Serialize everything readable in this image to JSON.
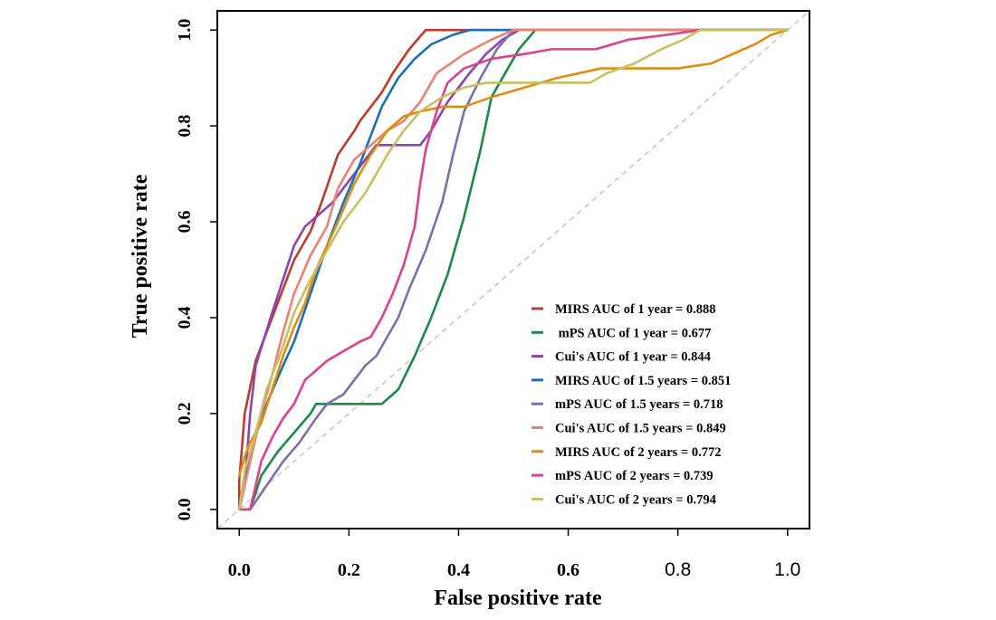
{
  "chart_data": {
    "type": "line",
    "xlabel": "False positive rate",
    "ylabel": "True positive rate",
    "xlim": [
      -0.04,
      1.04
    ],
    "ylim": [
      -0.04,
      1.04
    ],
    "x_ticks": [
      {
        "value": 0.0,
        "label": "0.0",
        "style": "serif-bold"
      },
      {
        "value": 0.2,
        "label": "0.2",
        "style": "serif-bold"
      },
      {
        "value": 0.4,
        "label": "0.4",
        "style": "serif-bold"
      },
      {
        "value": 0.6,
        "label": "0.6",
        "style": "serif-bold"
      },
      {
        "value": 0.8,
        "label": "0.8",
        "style": "sans"
      },
      {
        "value": 1.0,
        "label": "1.0",
        "style": "sans"
      }
    ],
    "y_ticks": [
      {
        "value": 0.0,
        "label": "0.0"
      },
      {
        "value": 0.2,
        "label": "0.2"
      },
      {
        "value": 0.4,
        "label": "0.4"
      },
      {
        "value": 0.6,
        "label": "0.6"
      },
      {
        "value": 0.8,
        "label": "0.8"
      },
      {
        "value": 1.0,
        "label": "1.0"
      }
    ],
    "grid": false,
    "legend_position": "bottom-right",
    "reference_line": {
      "style": "dashed",
      "color": "#c8c8c8",
      "points": [
        [
          -0.04,
          -0.04
        ],
        [
          1.04,
          1.04
        ]
      ]
    },
    "series": [
      {
        "name": "MIRS AUC of 1 year = 0.888",
        "color": "#c0392b",
        "points": [
          [
            0,
            0
          ],
          [
            0,
            0.06
          ],
          [
            0.01,
            0.2
          ],
          [
            0.03,
            0.31
          ],
          [
            0.05,
            0.37
          ],
          [
            0.08,
            0.46
          ],
          [
            0.1,
            0.52
          ],
          [
            0.13,
            0.58
          ],
          [
            0.15,
            0.64
          ],
          [
            0.18,
            0.74
          ],
          [
            0.21,
            0.79
          ],
          [
            0.22,
            0.81
          ],
          [
            0.26,
            0.87
          ],
          [
            0.28,
            0.91
          ],
          [
            0.31,
            0.96
          ],
          [
            0.34,
            1.0
          ],
          [
            1.0,
            1.0
          ]
        ]
      },
      {
        "name": " mPS AUC of 1 year = 0.677",
        "color": "#1a8a4a",
        "points": [
          [
            0,
            0
          ],
          [
            0.02,
            0
          ],
          [
            0.04,
            0.07
          ],
          [
            0.07,
            0.12
          ],
          [
            0.1,
            0.16
          ],
          [
            0.13,
            0.2
          ],
          [
            0.14,
            0.22
          ],
          [
            0.19,
            0.22
          ],
          [
            0.26,
            0.22
          ],
          [
            0.29,
            0.25
          ],
          [
            0.32,
            0.32
          ],
          [
            0.35,
            0.4
          ],
          [
            0.38,
            0.49
          ],
          [
            0.41,
            0.61
          ],
          [
            0.44,
            0.75
          ],
          [
            0.46,
            0.86
          ],
          [
            0.49,
            0.92
          ],
          [
            0.51,
            0.96
          ],
          [
            0.54,
            1.0
          ],
          [
            1.0,
            1.0
          ]
        ]
      },
      {
        "name": "Cui's AUC of 1 year = 0.844",
        "color": "#8e44ad",
        "points": [
          [
            0,
            0
          ],
          [
            0.01,
            0.05
          ],
          [
            0.02,
            0.2
          ],
          [
            0.03,
            0.3
          ],
          [
            0.06,
            0.41
          ],
          [
            0.08,
            0.48
          ],
          [
            0.1,
            0.55
          ],
          [
            0.12,
            0.59
          ],
          [
            0.15,
            0.62
          ],
          [
            0.17,
            0.64
          ],
          [
            0.21,
            0.7
          ],
          [
            0.25,
            0.76
          ],
          [
            0.33,
            0.76
          ],
          [
            0.35,
            0.79
          ],
          [
            0.38,
            0.85
          ],
          [
            0.42,
            0.91
          ],
          [
            0.45,
            0.95
          ],
          [
            0.48,
            0.98
          ],
          [
            0.51,
            1.0
          ],
          [
            1.0,
            1.0
          ]
        ]
      },
      {
        "name": "MIRS AUC of 1.5 years = 0.851",
        "color": "#1a70b8",
        "points": [
          [
            0,
            0
          ],
          [
            0.01,
            0.07
          ],
          [
            0.03,
            0.16
          ],
          [
            0.05,
            0.22
          ],
          [
            0.08,
            0.3
          ],
          [
            0.1,
            0.35
          ],
          [
            0.13,
            0.45
          ],
          [
            0.16,
            0.55
          ],
          [
            0.19,
            0.64
          ],
          [
            0.22,
            0.72
          ],
          [
            0.24,
            0.78
          ],
          [
            0.26,
            0.84
          ],
          [
            0.29,
            0.9
          ],
          [
            0.32,
            0.94
          ],
          [
            0.35,
            0.97
          ],
          [
            0.39,
            0.99
          ],
          [
            0.42,
            1.0
          ],
          [
            1.0,
            1.0
          ]
        ]
      },
      {
        "name": "mPS AUC of 1.5 years = 0.718",
        "color": "#7b6fb0",
        "points": [
          [
            0,
            0
          ],
          [
            0.02,
            0
          ],
          [
            0.05,
            0.05
          ],
          [
            0.08,
            0.1
          ],
          [
            0.11,
            0.14
          ],
          [
            0.14,
            0.19
          ],
          [
            0.16,
            0.22
          ],
          [
            0.19,
            0.24
          ],
          [
            0.21,
            0.27
          ],
          [
            0.23,
            0.3
          ],
          [
            0.25,
            0.32
          ],
          [
            0.27,
            0.36
          ],
          [
            0.29,
            0.4
          ],
          [
            0.31,
            0.46
          ],
          [
            0.34,
            0.54
          ],
          [
            0.37,
            0.64
          ],
          [
            0.39,
            0.74
          ],
          [
            0.41,
            0.83
          ],
          [
            0.44,
            0.9
          ],
          [
            0.47,
            0.96
          ],
          [
            0.5,
            1.0
          ],
          [
            1.0,
            1.0
          ]
        ]
      },
      {
        "name": "Cui's AUC of 1.5 years = 0.849",
        "color": "#f08070",
        "points": [
          [
            0,
            0
          ],
          [
            0.01,
            0.05
          ],
          [
            0.02,
            0.1
          ],
          [
            0.04,
            0.2
          ],
          [
            0.06,
            0.28
          ],
          [
            0.08,
            0.37
          ],
          [
            0.1,
            0.45
          ],
          [
            0.13,
            0.53
          ],
          [
            0.16,
            0.59
          ],
          [
            0.18,
            0.67
          ],
          [
            0.21,
            0.73
          ],
          [
            0.24,
            0.76
          ],
          [
            0.27,
            0.79
          ],
          [
            0.3,
            0.81
          ],
          [
            0.33,
            0.85
          ],
          [
            0.36,
            0.91
          ],
          [
            0.41,
            0.95
          ],
          [
            0.46,
            0.98
          ],
          [
            0.5,
            1.0
          ],
          [
            1.0,
            1.0
          ]
        ]
      },
      {
        "name": "MIRS AUC of 2 years = 0.772",
        "color": "#e08c10",
        "points": [
          [
            0,
            0.07
          ],
          [
            0.01,
            0.11
          ],
          [
            0.02,
            0.14
          ],
          [
            0.04,
            0.18
          ],
          [
            0.06,
            0.25
          ],
          [
            0.08,
            0.32
          ],
          [
            0.1,
            0.38
          ],
          [
            0.12,
            0.43
          ],
          [
            0.14,
            0.5
          ],
          [
            0.16,
            0.55
          ],
          [
            0.18,
            0.6
          ],
          [
            0.21,
            0.68
          ],
          [
            0.24,
            0.74
          ],
          [
            0.27,
            0.79
          ],
          [
            0.3,
            0.82
          ],
          [
            0.33,
            0.83
          ],
          [
            0.37,
            0.84
          ],
          [
            0.41,
            0.84
          ],
          [
            0.46,
            0.86
          ],
          [
            0.52,
            0.88
          ],
          [
            0.58,
            0.9
          ],
          [
            0.66,
            0.92
          ],
          [
            0.72,
            0.92
          ],
          [
            0.8,
            0.92
          ],
          [
            0.86,
            0.93
          ],
          [
            0.9,
            0.95
          ],
          [
            0.94,
            0.97
          ],
          [
            0.97,
            0.99
          ],
          [
            1.0,
            1.0
          ]
        ]
      },
      {
        "name": "mPS AUC of 2 years = 0.739",
        "color": "#e0408a",
        "points": [
          [
            0,
            0
          ],
          [
            0.02,
            0
          ],
          [
            0.04,
            0.1
          ],
          [
            0.06,
            0.15
          ],
          [
            0.08,
            0.19
          ],
          [
            0.1,
            0.22
          ],
          [
            0.12,
            0.27
          ],
          [
            0.14,
            0.29
          ],
          [
            0.16,
            0.31
          ],
          [
            0.19,
            0.33
          ],
          [
            0.22,
            0.35
          ],
          [
            0.24,
            0.36
          ],
          [
            0.26,
            0.4
          ],
          [
            0.28,
            0.45
          ],
          [
            0.3,
            0.51
          ],
          [
            0.32,
            0.59
          ],
          [
            0.33,
            0.68
          ],
          [
            0.34,
            0.75
          ],
          [
            0.36,
            0.83
          ],
          [
            0.38,
            0.89
          ],
          [
            0.41,
            0.92
          ],
          [
            0.46,
            0.94
          ],
          [
            0.52,
            0.95
          ],
          [
            0.57,
            0.96
          ],
          [
            0.61,
            0.96
          ],
          [
            0.65,
            0.96
          ],
          [
            0.71,
            0.98
          ],
          [
            0.78,
            0.99
          ],
          [
            0.84,
            1.0
          ],
          [
            1.0,
            1.0
          ]
        ]
      },
      {
        "name": "Cui's AUC of 2 years = 0.794",
        "color": "#c8c060",
        "points": [
          [
            0,
            0
          ],
          [
            0.01,
            0.08
          ],
          [
            0.03,
            0.16
          ],
          [
            0.05,
            0.25
          ],
          [
            0.08,
            0.34
          ],
          [
            0.1,
            0.41
          ],
          [
            0.13,
            0.48
          ],
          [
            0.16,
            0.54
          ],
          [
            0.19,
            0.6
          ],
          [
            0.21,
            0.63
          ],
          [
            0.23,
            0.66
          ],
          [
            0.25,
            0.7
          ],
          [
            0.27,
            0.74
          ],
          [
            0.3,
            0.79
          ],
          [
            0.33,
            0.83
          ],
          [
            0.37,
            0.86
          ],
          [
            0.41,
            0.88
          ],
          [
            0.45,
            0.89
          ],
          [
            0.52,
            0.89
          ],
          [
            0.58,
            0.89
          ],
          [
            0.64,
            0.89
          ],
          [
            0.67,
            0.91
          ],
          [
            0.72,
            0.93
          ],
          [
            0.77,
            0.96
          ],
          [
            0.81,
            0.98
          ],
          [
            0.84,
            1.0
          ],
          [
            1.0,
            1.0
          ]
        ]
      }
    ]
  }
}
